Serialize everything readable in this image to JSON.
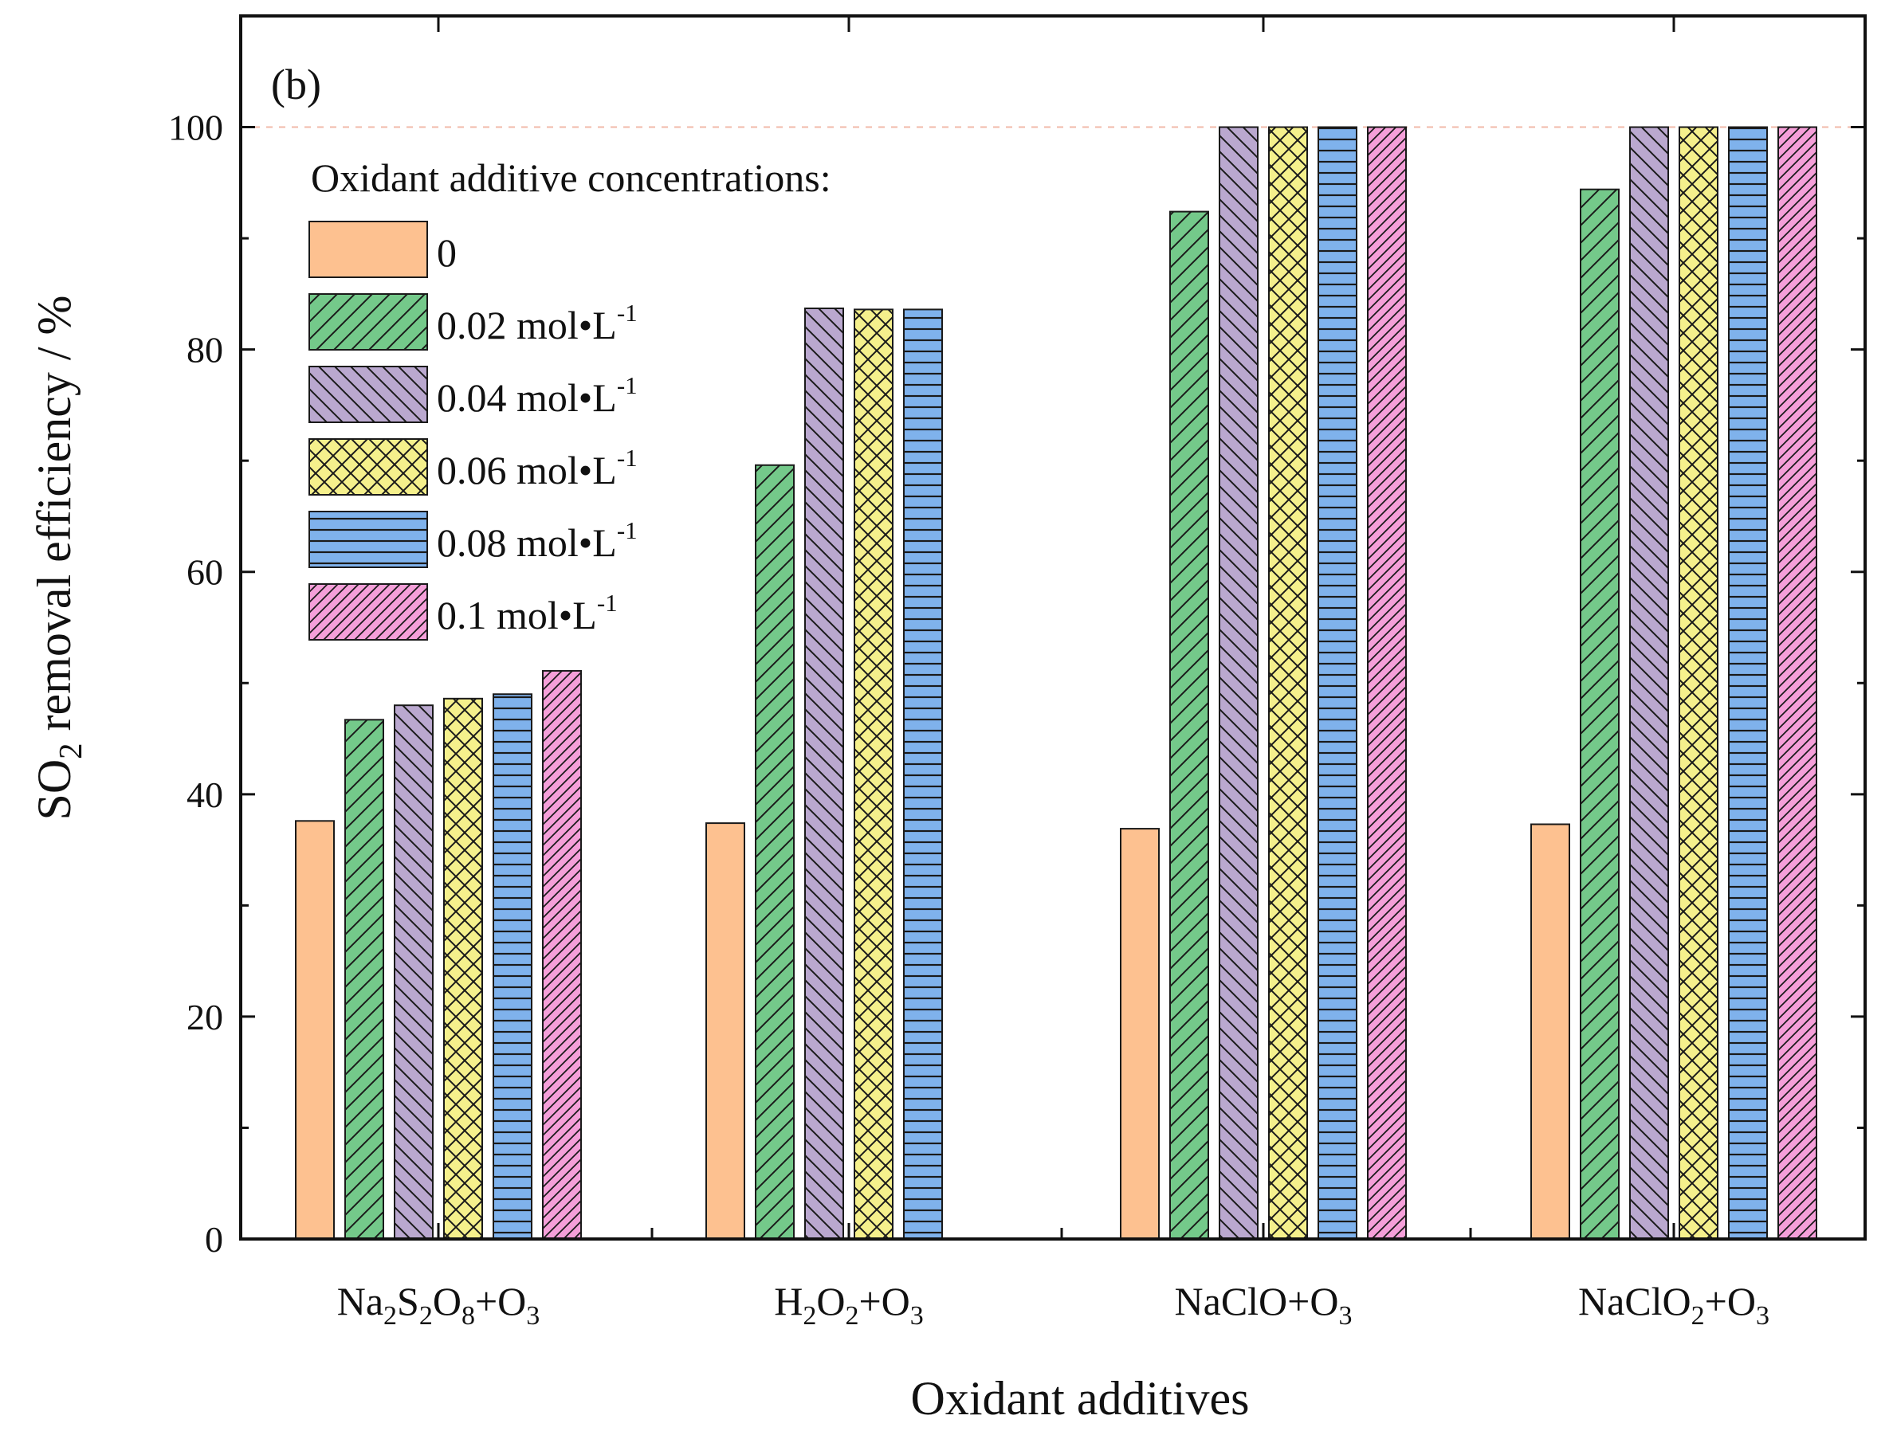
{
  "chart_data": {
    "type": "bar",
    "panel_label": "(b)",
    "title": "",
    "xlabel": "Oxidant additives",
    "ylabel": "SO2 removal efficiency / %",
    "ylim": [
      0,
      110
    ],
    "yticks": [
      0,
      20,
      40,
      60,
      80,
      100
    ],
    "reference_line": 100,
    "categories": [
      "Na2S2O8+O3",
      "H2O2+O3",
      "NaClO+O3",
      "NaClO2+O3"
    ],
    "legend_title": "Oxidant additive concentrations:",
    "legend_position": "top-left",
    "series": [
      {
        "name": "0",
        "color": "#FDC190",
        "pattern": "none",
        "values": [
          37.6,
          37.4,
          36.9,
          37.3
        ]
      },
      {
        "name": "0.02 mol•L-1",
        "color": "#74C98A",
        "pattern": "diag-right",
        "values": [
          46.7,
          69.6,
          92.4,
          94.4
        ]
      },
      {
        "name": "0.04 mol•L-1",
        "color": "#BAA8CF",
        "pattern": "diag-left",
        "values": [
          48.0,
          83.7,
          100,
          100
        ]
      },
      {
        "name": "0.06 mol•L-1",
        "color": "#F5F08C",
        "pattern": "crosshatch",
        "values": [
          48.6,
          83.6,
          100,
          100
        ]
      },
      {
        "name": "0.08 mol•L-1",
        "color": "#7FB2EC",
        "pattern": "horizontal",
        "values": [
          49.0,
          83.6,
          100,
          100
        ]
      },
      {
        "name": "0.1 mol•L-1",
        "color": "#F59FD9",
        "pattern": "diag-right-dense",
        "values": [
          51.1,
          null,
          100,
          100
        ]
      }
    ]
  }
}
